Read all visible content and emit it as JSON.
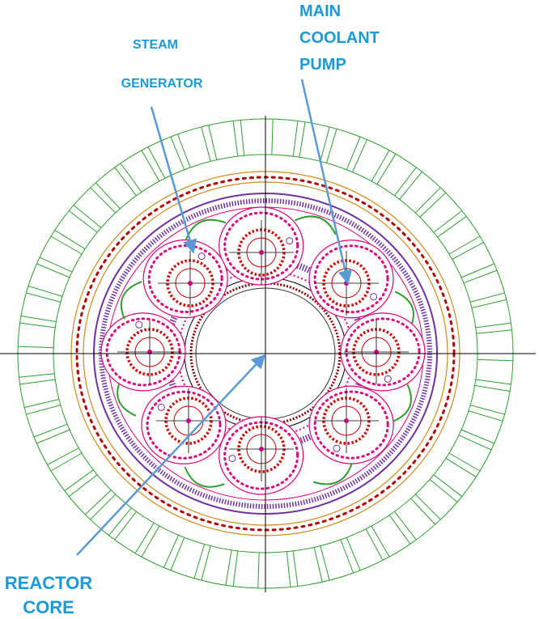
{
  "labels": {
    "steam_generator": {
      "lines": [
        "STEAM",
        "GENERATOR"
      ]
    },
    "main_coolant_pump": {
      "lines": [
        "MAIN",
        "COOLANT",
        "PUMP"
      ]
    },
    "reactor_core": {
      "lines": [
        "REACTOR",
        "CORE"
      ]
    }
  }
}
